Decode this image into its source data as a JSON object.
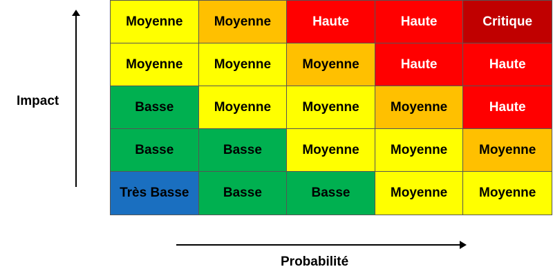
{
  "labels": {
    "y_axis": "Impact",
    "x_axis": "Probabilité"
  },
  "levels": {
    "Très Basse": "#1a6fc0",
    "Basse": "#00b050",
    "Moyenne": "#ffff00",
    "Moyenne (orange)": "#ffc000",
    "Haute": "#ff0000",
    "Critique": "#c00000"
  },
  "matrix": [
    [
      {
        "label": "Moyenne",
        "color": "#ffff00",
        "text_color": "#000000"
      },
      {
        "label": "Moyenne",
        "color": "#ffc000",
        "text_color": "#000000"
      },
      {
        "label": "Haute",
        "color": "#ff0000",
        "text_color": "#ffffff"
      },
      {
        "label": "Haute",
        "color": "#ff0000",
        "text_color": "#ffffff"
      },
      {
        "label": "Critique",
        "color": "#c00000",
        "text_color": "#ffffff"
      }
    ],
    [
      {
        "label": "Moyenne",
        "color": "#ffff00",
        "text_color": "#000000"
      },
      {
        "label": "Moyenne",
        "color": "#ffff00",
        "text_color": "#000000"
      },
      {
        "label": "Moyenne",
        "color": "#ffc000",
        "text_color": "#000000"
      },
      {
        "label": "Haute",
        "color": "#ff0000",
        "text_color": "#ffffff"
      },
      {
        "label": "Haute",
        "color": "#ff0000",
        "text_color": "#ffffff"
      }
    ],
    [
      {
        "label": "Basse",
        "color": "#00b050",
        "text_color": "#000000"
      },
      {
        "label": "Moyenne",
        "color": "#ffff00",
        "text_color": "#000000"
      },
      {
        "label": "Moyenne",
        "color": "#ffff00",
        "text_color": "#000000"
      },
      {
        "label": "Moyenne",
        "color": "#ffc000",
        "text_color": "#000000"
      },
      {
        "label": "Haute",
        "color": "#ff0000",
        "text_color": "#ffffff"
      }
    ],
    [
      {
        "label": "Basse",
        "color": "#00b050",
        "text_color": "#000000"
      },
      {
        "label": "Basse",
        "color": "#00b050",
        "text_color": "#000000"
      },
      {
        "label": "Moyenne",
        "color": "#ffff00",
        "text_color": "#000000"
      },
      {
        "label": "Moyenne",
        "color": "#ffff00",
        "text_color": "#000000"
      },
      {
        "label": "Moyenne",
        "color": "#ffc000",
        "text_color": "#000000"
      }
    ],
    [
      {
        "label": "Très Basse",
        "color": "#1a6fc0",
        "text_color": "#000000"
      },
      {
        "label": "Basse",
        "color": "#00b050",
        "text_color": "#000000"
      },
      {
        "label": "Basse",
        "color": "#00b050",
        "text_color": "#000000"
      },
      {
        "label": "Moyenne",
        "color": "#ffff00",
        "text_color": "#000000"
      },
      {
        "label": "Moyenne",
        "color": "#ffff00",
        "text_color": "#000000"
      }
    ]
  ]
}
